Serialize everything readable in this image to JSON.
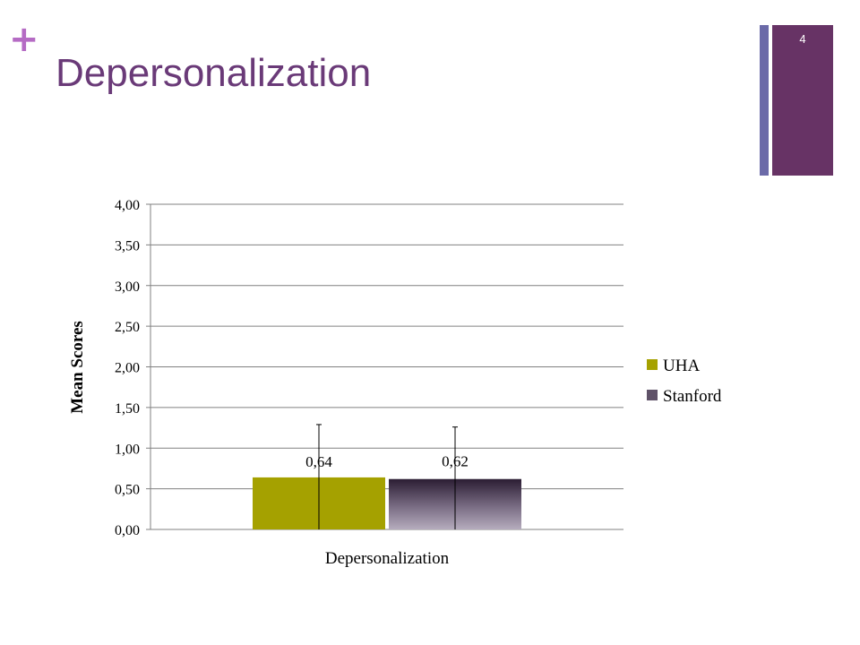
{
  "slide": {
    "title": "Depersonalization",
    "plus_glyph": "+",
    "number": "4",
    "colors": {
      "plus": "#b56bc4",
      "title": "#6a3a78",
      "stripe_thin": "#6b6aa8",
      "stripe_wide": "#673365"
    }
  },
  "chart_data": {
    "type": "bar",
    "categories": [
      "Depersonalization"
    ],
    "series": [
      {
        "name": "UHA",
        "values": [
          0.64
        ],
        "error_upper": [
          1.29
        ],
        "color": "#a5a100",
        "value_labels": [
          "0,64"
        ]
      },
      {
        "name": "Stanford",
        "values": [
          0.62
        ],
        "error_upper": [
          1.26
        ],
        "color": "#3a2a42",
        "value_labels": [
          "0,62"
        ]
      }
    ],
    "ylabel": "Mean Scores",
    "xlabel": "",
    "ylim": [
      0,
      4
    ],
    "yticks": [
      "0,00",
      "0,50",
      "1,00",
      "1,50",
      "2,00",
      "2,50",
      "3,00",
      "3,50",
      "4,00"
    ],
    "ytick_values": [
      0,
      0.5,
      1,
      1.5,
      2,
      2.5,
      3,
      3.5,
      4
    ],
    "grid": true,
    "legend_position": "right"
  }
}
